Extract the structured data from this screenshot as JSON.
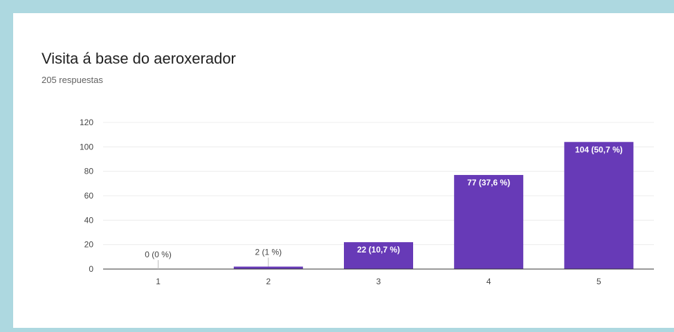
{
  "card": {
    "title": "Visita á base do aeroxerador",
    "subtitle": "205 respuestas"
  },
  "colors": {
    "bar": "#673ab7",
    "grid": "#ececec",
    "axis": "#333333",
    "background": "#add8e0"
  },
  "chart_data": {
    "type": "bar",
    "title": "",
    "xlabel": "",
    "ylabel": "",
    "categories": [
      "1",
      "2",
      "3",
      "4",
      "5"
    ],
    "values": [
      0,
      2,
      22,
      77,
      104
    ],
    "data_labels": [
      "0 (0 %)",
      "2 (1 %)",
      "22 (10,7 %)",
      "77 (37,6 %)",
      "104 (50,7 %)"
    ],
    "ylim": [
      0,
      120
    ],
    "yticks": [
      0,
      20,
      40,
      60,
      80,
      100,
      120
    ],
    "grid": true,
    "legend": "none"
  }
}
